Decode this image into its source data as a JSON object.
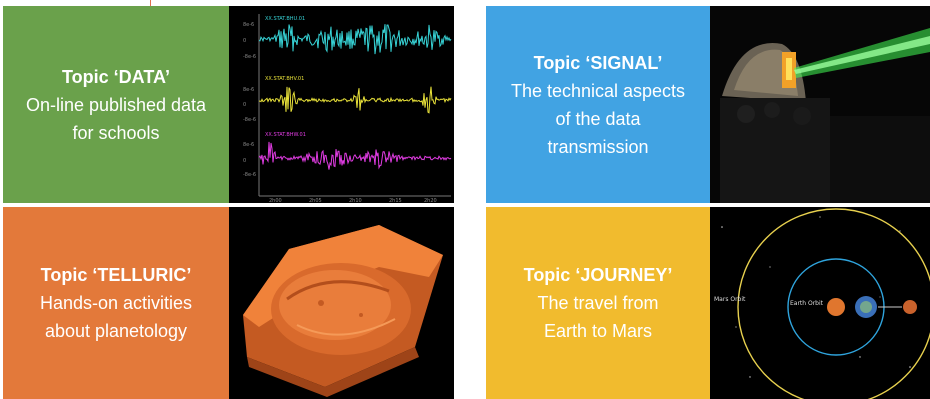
{
  "panels": {
    "data": {
      "title": "Topic ‘DATA’",
      "desc": "On-line published data for schools",
      "color": "#6aa14b"
    },
    "telluric": {
      "title": "Topic ‘TELLURIC’",
      "desc": "Hands-on activities about planetology",
      "color": "#e3793a"
    },
    "signal": {
      "title": "Topic ‘SIGNAL’",
      "desc": "The technical aspects of the data transmission",
      "color": "#41a3e3"
    },
    "journey": {
      "title": "Topic ‘JOURNEY’",
      "desc": "The travel from Earth to Mars",
      "color": "#f1bb2e"
    }
  },
  "orbit_labels": {
    "mars": "Mars Orbit",
    "earth": "Earth Orbit"
  },
  "colors": {
    "trace1": "#37d3d6",
    "trace2": "#e9e23a",
    "trace3": "#e13ce3",
    "laser": "#44ff55",
    "orbit_mars": "#e7d04e",
    "orbit_earth": "#2fa4dd"
  }
}
